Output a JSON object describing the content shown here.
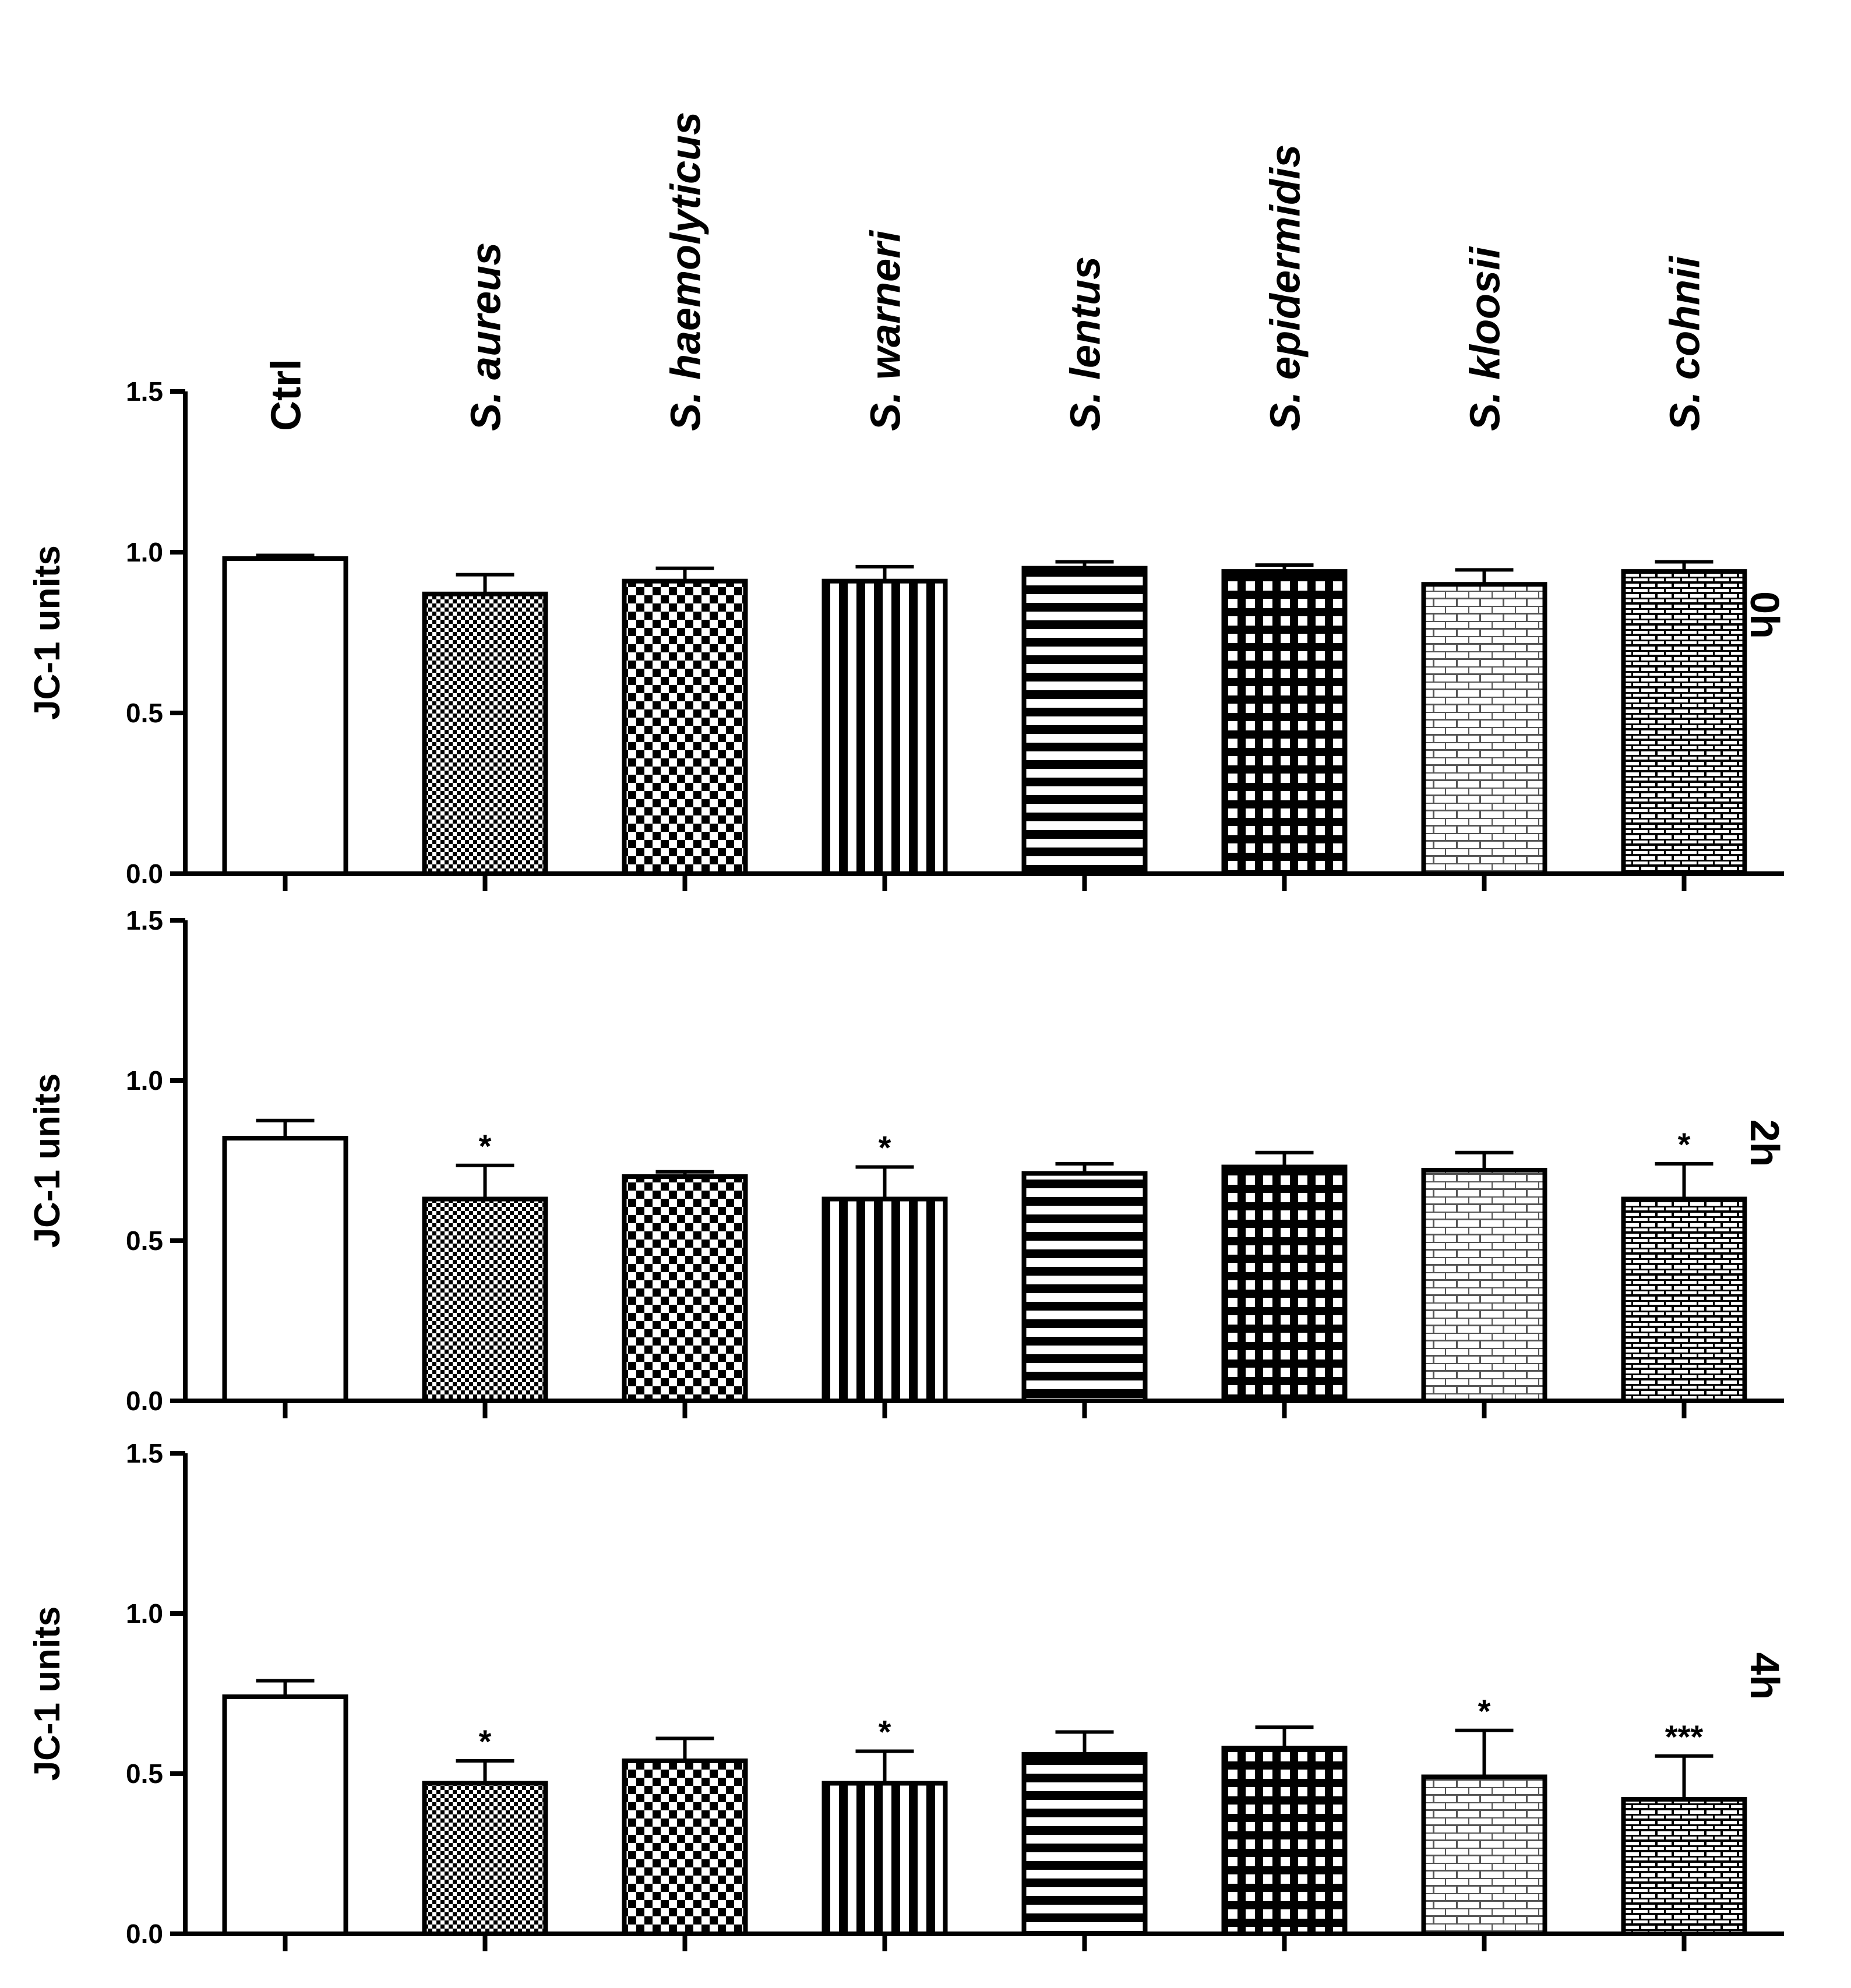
{
  "chart_data": {
    "type": "bar",
    "categories": [
      "Ctrl",
      "S. aureus",
      "S. haemolyticus",
      "S. warneri",
      "S. lentus",
      "S. epidermidis",
      "S. kloosii",
      "S. cohnii"
    ],
    "category_italic": [
      false,
      true,
      true,
      true,
      true,
      true,
      true,
      true
    ],
    "category_patterns": [
      "solid-white",
      "fine-checker",
      "checker",
      "vertical-stripes",
      "horizontal-stripes",
      "grid",
      "brick-light",
      "brick-fine"
    ],
    "ylabel": "JC-1 units",
    "ylim": [
      0,
      1.5
    ],
    "yticks": [
      "0.0",
      "0.5",
      "1.0",
      "1.5"
    ],
    "panels": [
      {
        "label": "0h",
        "values": [
          0.98,
          0.87,
          0.91,
          0.91,
          0.95,
          0.94,
          0.9,
          0.94
        ],
        "errors": [
          0.01,
          0.06,
          0.04,
          0.045,
          0.02,
          0.02,
          0.045,
          0.03
        ],
        "significance": [
          "",
          "",
          "",
          "",
          "",
          "",
          "",
          ""
        ]
      },
      {
        "label": "2h",
        "values": [
          0.82,
          0.63,
          0.7,
          0.63,
          0.71,
          0.73,
          0.72,
          0.63
        ],
        "errors": [
          0.055,
          0.105,
          0.015,
          0.1,
          0.03,
          0.045,
          0.055,
          0.11
        ],
        "significance": [
          "",
          "*",
          "",
          "*",
          "",
          "",
          "",
          "*"
        ]
      },
      {
        "label": "4h",
        "values": [
          0.74,
          0.47,
          0.54,
          0.47,
          0.56,
          0.58,
          0.49,
          0.42
        ],
        "errors": [
          0.05,
          0.07,
          0.07,
          0.1,
          0.07,
          0.065,
          0.145,
          0.135
        ],
        "significance": [
          "",
          "*",
          "",
          "*",
          "",
          "",
          "*",
          "***"
        ]
      }
    ]
  }
}
